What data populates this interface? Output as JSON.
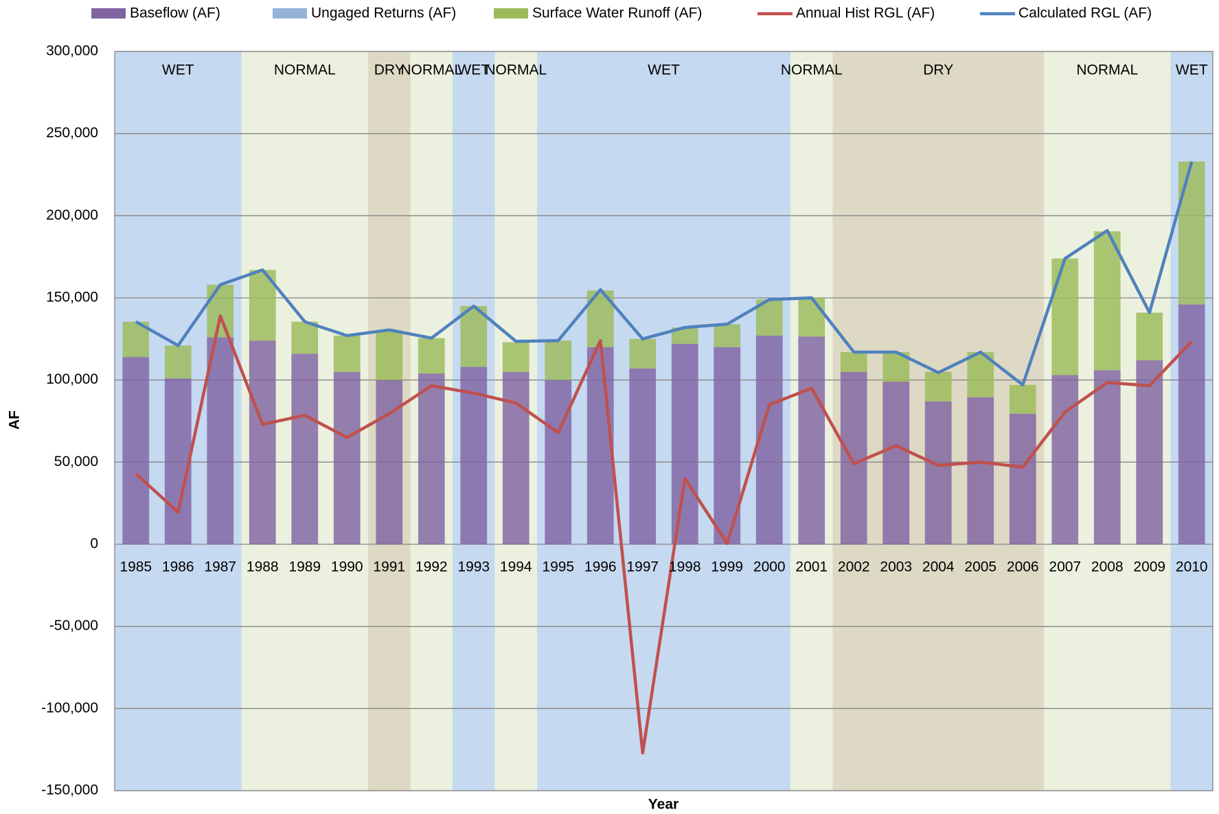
{
  "chart_data": {
    "type": "bar",
    "stacked": true,
    "x_label": "Year",
    "y_label": "AF",
    "categories": [
      "1985",
      "1986",
      "1987",
      "1988",
      "1989",
      "1990",
      "1991",
      "1992",
      "1993",
      "1994",
      "1995",
      "1996",
      "1997",
      "1998",
      "1999",
      "2000",
      "2001",
      "2002",
      "2003",
      "2004",
      "2005",
      "2006",
      "2007",
      "2008",
      "2009",
      "2010"
    ],
    "series": [
      {
        "name": "Baseflow (AF)",
        "type": "bar",
        "color": "#8064a2",
        "values": [
          114000,
          101000,
          126000,
          124000,
          116000,
          105000,
          100000,
          104000,
          108000,
          105000,
          100000,
          120000,
          107000,
          122000,
          120000,
          127000,
          126500,
          105000,
          99000,
          87000,
          89500,
          79500,
          103000,
          106000,
          112000,
          146000
        ]
      },
      {
        "name": "Ungaged Returns (AF)",
        "type": "bar",
        "color": "#95b3d7",
        "values": [
          0,
          0,
          0,
          0,
          0,
          0,
          0,
          0,
          0,
          0,
          0,
          0,
          0,
          0,
          0,
          0,
          0,
          0,
          0,
          0,
          0,
          0,
          0,
          0,
          0,
          0
        ]
      },
      {
        "name": "Surface Water Runoff (AF)",
        "type": "bar",
        "color": "#9bbb59",
        "values": [
          21500,
          20000,
          32000,
          43000,
          19500,
          22000,
          30000,
          21500,
          37000,
          18000,
          24000,
          34500,
          18000,
          10000,
          14000,
          22000,
          23500,
          12000,
          18000,
          18000,
          27500,
          17500,
          71000,
          84500,
          29000,
          87000
        ]
      },
      {
        "name": "Annual Hist RGL (AF)",
        "type": "line",
        "color": "#c0504d",
        "values": [
          43000,
          19500,
          139000,
          73000,
          78500,
          65000,
          79500,
          96500,
          92000,
          86000,
          68000,
          124000,
          -127000,
          40000,
          500,
          85000,
          95000,
          49000,
          60000,
          48000,
          50000,
          47000,
          80500,
          98500,
          96500,
          123500
        ]
      },
      {
        "name": "Calculated RGL (AF)",
        "type": "line",
        "color": "#4f81bd",
        "values": [
          135500,
          121000,
          158000,
          167000,
          135500,
          127000,
          130500,
          125500,
          145000,
          123500,
          124000,
          155000,
          125000,
          132000,
          134000,
          149000,
          150000,
          117000,
          117000,
          104500,
          117000,
          97000,
          174000,
          191000,
          141000,
          233000
        ]
      }
    ],
    "bands": [
      {
        "label": "WET",
        "from": "1985",
        "to": "1987",
        "color": "#c5d9f1"
      },
      {
        "label": "NORMAL",
        "from": "1988",
        "to": "1990",
        "color": "#ebf1de"
      },
      {
        "label": "DRY",
        "from": "1991",
        "to": "1991",
        "color": "#ddd9c4"
      },
      {
        "label": "NORMAL",
        "from": "1992",
        "to": "1992",
        "color": "#ebf1de"
      },
      {
        "label": "WET",
        "from": "1993",
        "to": "1993",
        "color": "#c5d9f1"
      },
      {
        "label": "NORMAL",
        "from": "1994",
        "to": "1994",
        "color": "#ebf1de"
      },
      {
        "label": "WET",
        "from": "1995",
        "to": "2000",
        "color": "#c5d9f1"
      },
      {
        "label": "NORMAL",
        "from": "2001",
        "to": "2001",
        "color": "#ebf1de"
      },
      {
        "label": "DRY",
        "from": "2002",
        "to": "2006",
        "color": "#ddd9c4"
      },
      {
        "label": "NORMAL",
        "from": "2007",
        "to": "2009",
        "color": "#ebf1de"
      },
      {
        "label": "WET",
        "from": "2010",
        "to": "2010",
        "color": "#c5d9f1"
      }
    ],
    "ylim": [
      -150000,
      300000
    ],
    "yticks": [
      {
        "value": -150000,
        "label": "-150,000"
      },
      {
        "value": -100000,
        "label": "-100,000"
      },
      {
        "value": -50000,
        "label": "-50,000"
      },
      0,
      {
        "value": 50000,
        "label": "50,000"
      },
      {
        "value": 100000,
        "label": "100,000"
      },
      {
        "value": 150000,
        "label": "150,000"
      },
      {
        "value": 200000,
        "label": "200,000"
      },
      {
        "value": 250000,
        "label": "250,000"
      },
      {
        "value": 300000,
        "label": "300,000"
      }
    ],
    "grid": true,
    "legend": "top"
  }
}
